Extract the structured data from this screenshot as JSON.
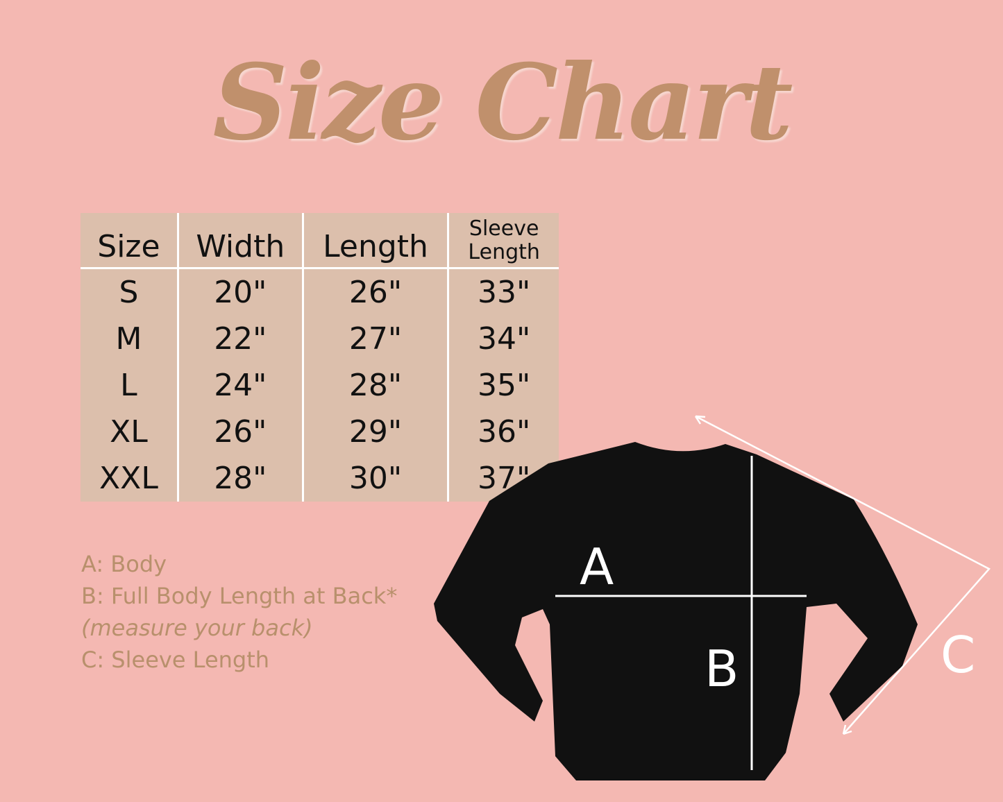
{
  "title": "Size Chart",
  "table": {
    "headers": [
      "Size",
      "Width",
      "Length",
      "Sleeve Length"
    ],
    "rows": [
      [
        "S",
        "20\"",
        "26\"",
        "33\""
      ],
      [
        "M",
        "22\"",
        "27\"",
        "34\""
      ],
      [
        "L",
        "24\"",
        "28\"",
        "35\""
      ],
      [
        "XL",
        "26\"",
        "29\"",
        "36\""
      ],
      [
        "XXL",
        "28\"",
        "30\"",
        "37\""
      ]
    ]
  },
  "legend": {
    "a": "A: Body",
    "b": "B: Full Body Length at Back*",
    "b_note": "(measure your back)",
    "c": "C: Sleeve Length"
  },
  "diagram": {
    "label_a": "A",
    "label_b": "B",
    "label_c": "C"
  },
  "colors": {
    "background": "#f4b8b2",
    "table": "#dcbfac",
    "accent": "#c0906c",
    "garment": "#111111"
  }
}
